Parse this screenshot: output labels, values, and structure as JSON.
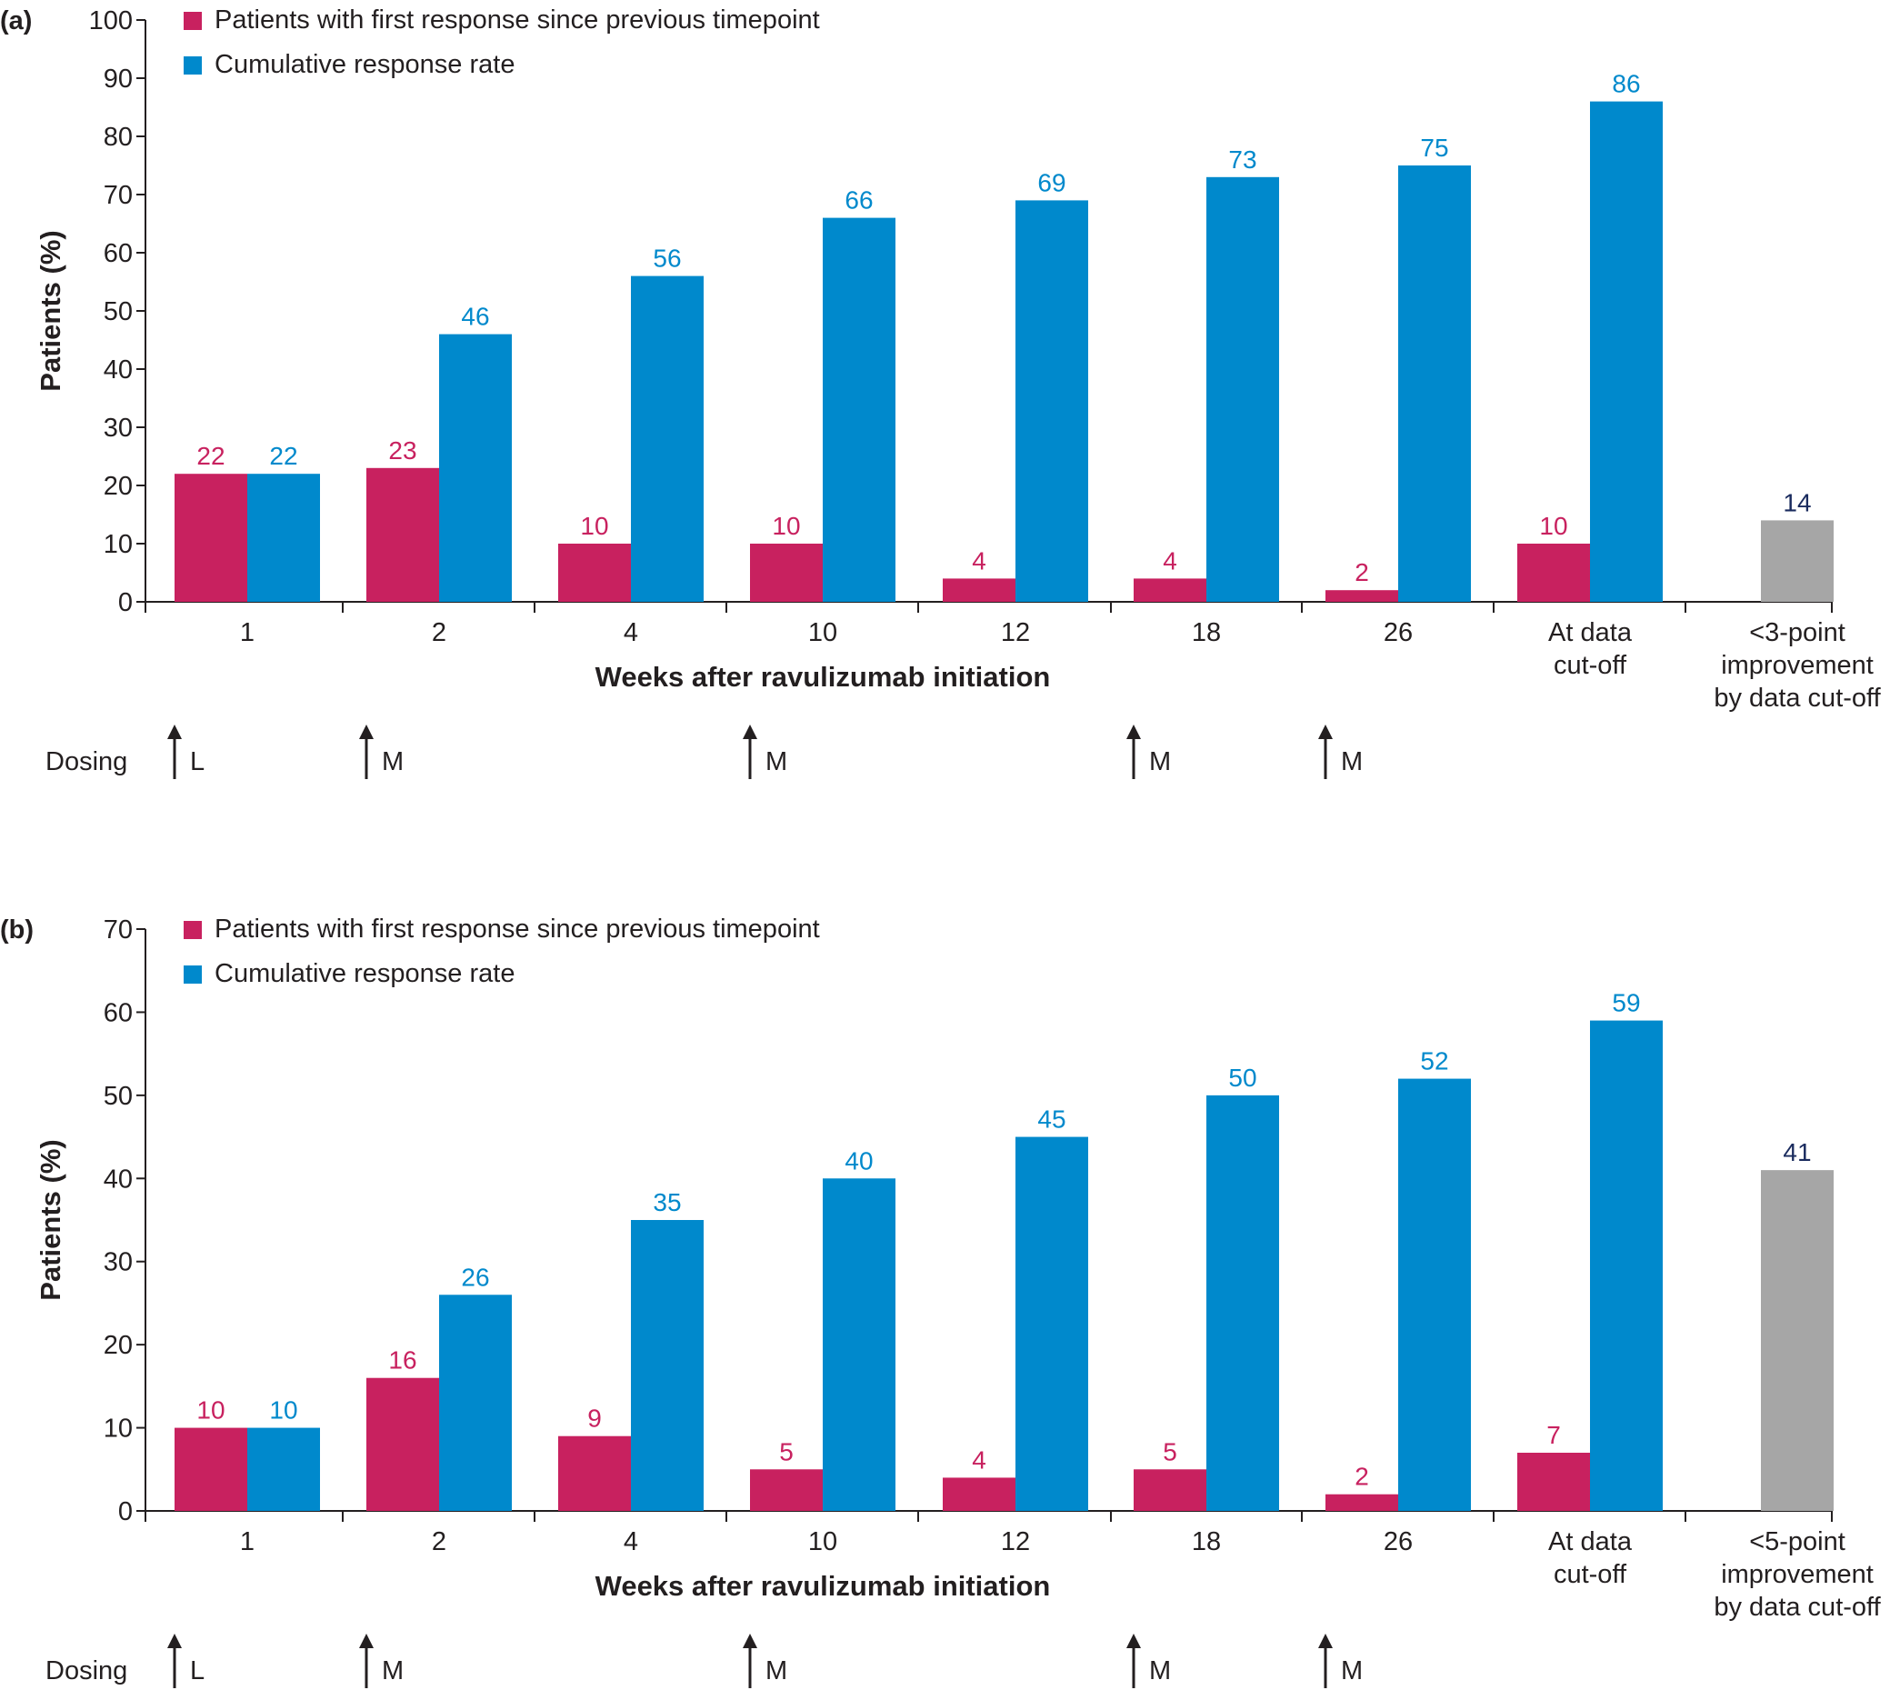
{
  "colors": {
    "first_response": "#c8215f",
    "cumulative": "#0089cc",
    "threshold": "#a6a6a6",
    "threshold_label": "#1a2b5e"
  },
  "chart_data": [
    {
      "panel_label": "(a)",
      "type": "bar",
      "ylabel": "Patients (%)",
      "xlabel": "Weeks after ravulizumab initiation",
      "ylim": [
        0,
        100
      ],
      "yticks": [
        0,
        10,
        20,
        30,
        40,
        50,
        60,
        70,
        80,
        90,
        100
      ],
      "categories": [
        [
          "1"
        ],
        [
          "2"
        ],
        [
          "4"
        ],
        [
          "10"
        ],
        [
          "12"
        ],
        [
          "18"
        ],
        [
          "26"
        ],
        [
          "At data",
          "cut-off"
        ]
      ],
      "series": [
        {
          "name": "Patients with first response since previous timepoint",
          "color": "#c8215f",
          "values": [
            22,
            23,
            10,
            10,
            4,
            4,
            2,
            10
          ]
        },
        {
          "name": "Cumulative response rate",
          "color": "#0089cc",
          "values": [
            22,
            46,
            56,
            66,
            69,
            73,
            75,
            86
          ]
        }
      ],
      "extra_bar": {
        "label": [
          "<3-point",
          "improvement",
          "by data cut-off"
        ],
        "value": 14,
        "color": "#a6a6a6"
      },
      "legend_position": "top-left",
      "dosing": {
        "label": "Dosing",
        "marks": [
          {
            "category": "1",
            "text": "L"
          },
          {
            "category": "2",
            "text": "M"
          },
          {
            "category": "10",
            "text": "M"
          },
          {
            "category": "18",
            "text": "M"
          },
          {
            "category": "26",
            "text": "M"
          }
        ]
      }
    },
    {
      "panel_label": "(b)",
      "type": "bar",
      "ylabel": "Patients (%)",
      "xlabel": "Weeks after ravulizumab initiation",
      "ylim": [
        0,
        70
      ],
      "yticks": [
        0,
        10,
        20,
        30,
        40,
        50,
        60,
        70
      ],
      "categories": [
        [
          "1"
        ],
        [
          "2"
        ],
        [
          "4"
        ],
        [
          "10"
        ],
        [
          "12"
        ],
        [
          "18"
        ],
        [
          "26"
        ],
        [
          "At data",
          "cut-off"
        ]
      ],
      "series": [
        {
          "name": "Patients with first response since previous timepoint",
          "color": "#c8215f",
          "values": [
            10,
            16,
            9,
            5,
            4,
            5,
            2,
            7
          ]
        },
        {
          "name": "Cumulative response rate",
          "color": "#0089cc",
          "values": [
            10,
            26,
            35,
            40,
            45,
            50,
            52,
            59
          ]
        }
      ],
      "extra_bar": {
        "label": [
          "<5-point",
          "improvement",
          "by data cut-off"
        ],
        "value": 41,
        "color": "#a6a6a6"
      },
      "legend_position": "top-left",
      "dosing": {
        "label": "Dosing",
        "marks": [
          {
            "category": "1",
            "text": "L"
          },
          {
            "category": "2",
            "text": "M"
          },
          {
            "category": "10",
            "text": "M"
          },
          {
            "category": "18",
            "text": "M"
          },
          {
            "category": "26",
            "text": "M"
          }
        ]
      }
    }
  ]
}
